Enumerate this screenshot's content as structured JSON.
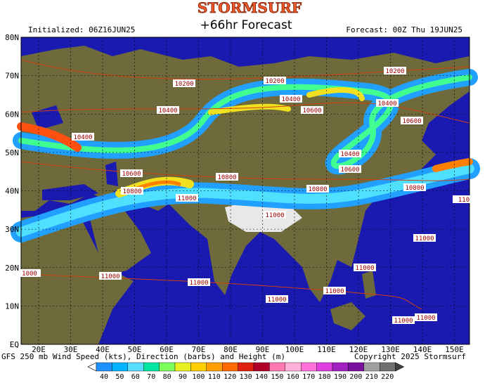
{
  "header": {
    "logo": "STORMSURF",
    "title": "+66hr Forecast",
    "initialized": "Initialized: 06Z16JUN25",
    "forecast": "Forecast: 00Z Thu 19JUN25"
  },
  "map": {
    "lat_labels": [
      "80N",
      "70N",
      "60N",
      "50N",
      "40N",
      "30N",
      "20N",
      "10N",
      "EQ"
    ],
    "lon_labels": [
      "20E",
      "30E",
      "40E",
      "50E",
      "60E",
      "70E",
      "80E",
      "90E",
      "100E",
      "110E",
      "120E",
      "130E",
      "140E",
      "150E"
    ],
    "contour_labels": [
      "10200",
      "10200",
      "10200",
      "10400",
      "10400",
      "10400",
      "10400",
      "10600",
      "10600",
      "10400",
      "10600",
      "10600",
      "10800",
      "10800",
      "10800",
      "10800",
      "11000",
      "11000",
      "110",
      "11000",
      "1000",
      "11000",
      "11000",
      "11000",
      "11000",
      "11000",
      "11000",
      "11000"
    ]
  },
  "footer": {
    "description": "GFS 250 mb Wind Speed (kts), Direction (barbs) and Height (m)",
    "copyright": "Copyright 2025 Stormsurf"
  },
  "colorbar": {
    "labels": [
      "40",
      "50",
      "60",
      "70",
      "80",
      "90",
      "100",
      "110",
      "120",
      "130",
      "140",
      "150",
      "160",
      "170",
      "180",
      "190",
      "200",
      "210",
      "220"
    ]
  }
}
